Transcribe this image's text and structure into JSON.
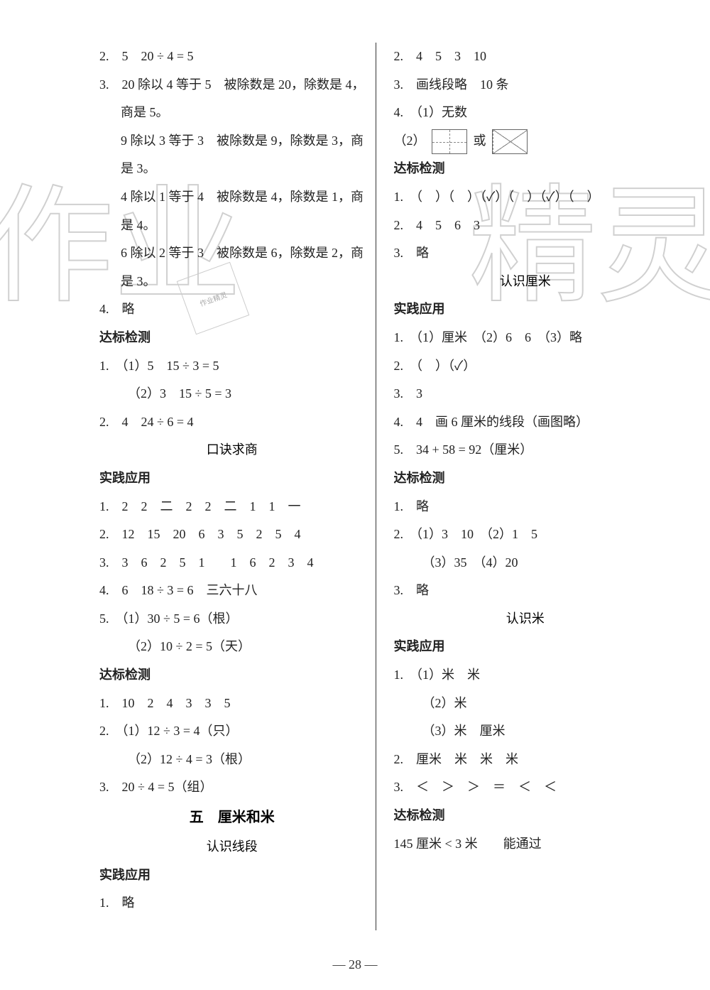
{
  "watermark_left": "作业",
  "watermark_right": "精灵",
  "page_number": "— 28 —",
  "left": {
    "l1": "2.　5　20 ÷ 4 = 5",
    "l2": "3.　20 除以 4 等于 5　被除数是 20，除数是 4，",
    "l2b": "商是 5。",
    "l3": "9 除以 3 等于 3　被除数是 9，除数是 3，商",
    "l3b": "是 3。",
    "l4": "4 除以 1 等于 4　被除数是 4，除数是 1，商",
    "l4b": "是 4。",
    "l5": "6 除以 2 等于 3　被除数是 6，除数是 2，商",
    "l5b": "是 3。",
    "l6": "4.　略",
    "h1": "达标检测",
    "l7": "1.　（1）5　15 ÷ 3 = 5",
    "l8": "（2）3　15 ÷ 5 = 3",
    "l9": "2.　4　24 ÷ 6 = 4",
    "sub1": "口诀求商",
    "h2": "实践应用",
    "l10": "1.　2　2　二　2　2　二　1　1　一",
    "l11": "2.　12　15　20　6　3　5　2　5　4",
    "l12": "3.　3　6　2　5　1　　1　6　2　3　4",
    "l13": "4.　6　18 ÷ 3 = 6　三六十八",
    "l14": "5.　（1）30 ÷ 5 = 6（根）",
    "l15": "（2）10 ÷ 2 = 5（天）",
    "h3": "达标检测",
    "l16": "1.　10　2　4　3　3　5",
    "l17": "2.　（1）12 ÷ 3 = 4（只）",
    "l18": "（2）12 ÷ 4 = 3（根）",
    "l19": "3.　20 ÷ 4 = 5（组）",
    "unit": "五　厘米和米",
    "sub2": "认识线段",
    "h4": "实践应用",
    "l20": "1.　略"
  },
  "right": {
    "l1": "2.　4　5　3　10",
    "l2": "3.　画线段略　10 条",
    "l3": "4.　（1）无数",
    "l4a": "（2）",
    "l4b": "或",
    "h1": "达标检测",
    "l5": "1.　（　）（　）（✓）（　）（✓）（　）",
    "l6": "2.　4　5　6　3",
    "l7": "3.　略",
    "sub1": "认识厘米",
    "h2": "实践应用",
    "l8": "1.　（1）厘米　（2）6　6　（3）略",
    "l9": "2.　（　）（✓）",
    "l10": "3.　3",
    "l11": "4.　4　画 6 厘米的线段（画图略）",
    "l12": "5.　34 + 58 = 92（厘米）",
    "h3": "达标检测",
    "l13": "1.　略",
    "l14": "2.　（1）3　10　（2）1　5",
    "l15": "（3）35　（4）20",
    "l16": "3.　略",
    "sub2": "认识米",
    "h4": "实践应用",
    "l17": "1.　（1）米　米",
    "l18": "（2）米",
    "l19": "（3）米　厘米",
    "l20": "2.　厘米　米　米　米",
    "l21": "3.　＜　＞　＞　＝　＜　＜",
    "h5": "达标检测",
    "l22": "145 厘米 < 3 米　　能通过"
  }
}
